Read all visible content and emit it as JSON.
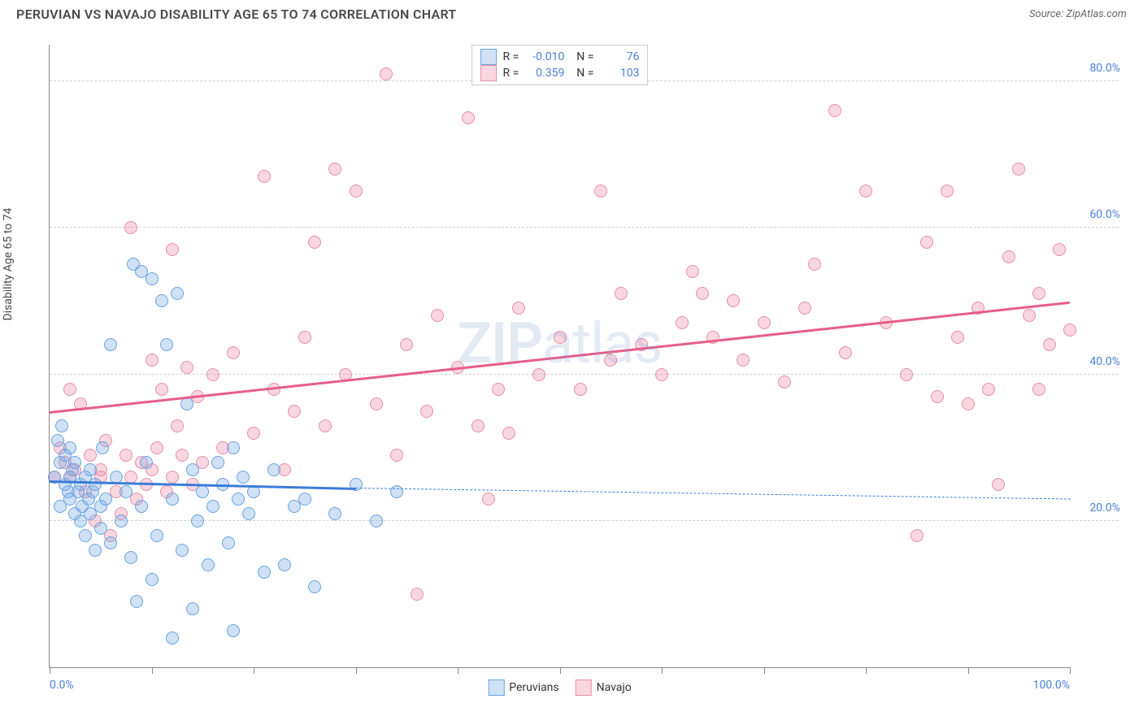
{
  "header": {
    "title": "PERUVIAN VS NAVAJO DISABILITY AGE 65 TO 74 CORRELATION CHART",
    "source": "Source: ZipAtlas.com"
  },
  "chart": {
    "type": "scatter",
    "ylabel": "Disability Age 65 to 74",
    "xlim": [
      0,
      100
    ],
    "ylim": [
      0,
      85
    ],
    "yticks": [
      20,
      40,
      60,
      80
    ],
    "ytick_labels": [
      "20.0%",
      "40.0%",
      "60.0%",
      "80.0%"
    ],
    "xticks": [
      0,
      10,
      20,
      30,
      40,
      50,
      60,
      70,
      80,
      90,
      100
    ],
    "xtick_labels_shown": {
      "0": "0.0%",
      "100": "100.0%"
    },
    "background_color": "#ffffff",
    "grid_color": "#d0d0d0",
    "axis_color": "#888888",
    "point_radius": 8,
    "watermark_zip": "ZIP",
    "watermark_atlas": "atlas",
    "series": {
      "peruvians": {
        "label": "Peruvians",
        "fill_color": "rgba(120, 170, 230, 0.35)",
        "stroke_color": "#6aa3e0",
        "line_color": "#3b7dd8",
        "R": "-0.010",
        "N": "76",
        "regression": {
          "x1": 0,
          "y1": 25.5,
          "x2": 30,
          "y2": 24.5,
          "dash_to_x": 100,
          "dash_to_y": 23.0
        },
        "points": [
          [
            0.5,
            26
          ],
          [
            0.8,
            31
          ],
          [
            1,
            28
          ],
          [
            1,
            22
          ],
          [
            1.2,
            33
          ],
          [
            1.5,
            25
          ],
          [
            1.5,
            29
          ],
          [
            1.8,
            24
          ],
          [
            2,
            26
          ],
          [
            2,
            30
          ],
          [
            2,
            23
          ],
          [
            2.2,
            27
          ],
          [
            2.5,
            21
          ],
          [
            2.5,
            28
          ],
          [
            2.8,
            24
          ],
          [
            3,
            25
          ],
          [
            3,
            20
          ],
          [
            3.2,
            22
          ],
          [
            3.5,
            18
          ],
          [
            3.5,
            26
          ],
          [
            3.8,
            23
          ],
          [
            4,
            21
          ],
          [
            4,
            27
          ],
          [
            4.2,
            24
          ],
          [
            4.5,
            16
          ],
          [
            4.5,
            25
          ],
          [
            5,
            22
          ],
          [
            5,
            19
          ],
          [
            5.2,
            30
          ],
          [
            5.5,
            23
          ],
          [
            6,
            17
          ],
          [
            6,
            44
          ],
          [
            6.5,
            26
          ],
          [
            7,
            20
          ],
          [
            7.5,
            24
          ],
          [
            8,
            15
          ],
          [
            8.2,
            55
          ],
          [
            8.5,
            9
          ],
          [
            9,
            22
          ],
          [
            9,
            54
          ],
          [
            9.5,
            28
          ],
          [
            10,
            53
          ],
          [
            10,
            12
          ],
          [
            10.5,
            18
          ],
          [
            11,
            50
          ],
          [
            11.5,
            44
          ],
          [
            12,
            4
          ],
          [
            12,
            23
          ],
          [
            12.5,
            51
          ],
          [
            13,
            16
          ],
          [
            13.5,
            36
          ],
          [
            14,
            8
          ],
          [
            14,
            27
          ],
          [
            14.5,
            20
          ],
          [
            15,
            24
          ],
          [
            15.5,
            14
          ],
          [
            16,
            22
          ],
          [
            16.5,
            28
          ],
          [
            17,
            25
          ],
          [
            17.5,
            17
          ],
          [
            18,
            30
          ],
          [
            18,
            5
          ],
          [
            18.5,
            23
          ],
          [
            19,
            26
          ],
          [
            19.5,
            21
          ],
          [
            20,
            24
          ],
          [
            21,
            13
          ],
          [
            22,
            27
          ],
          [
            23,
            14
          ],
          [
            24,
            22
          ],
          [
            25,
            23
          ],
          [
            26,
            11
          ],
          [
            28,
            21
          ],
          [
            30,
            25
          ],
          [
            32,
            20
          ],
          [
            34,
            24
          ]
        ]
      },
      "navajo": {
        "label": "Navajo",
        "fill_color": "rgba(240, 140, 165, 0.35)",
        "stroke_color": "#e88fa8",
        "line_color": "#e85d8a",
        "R": "0.359",
        "N": "103",
        "regression": {
          "x1": 0,
          "y1": 35,
          "x2": 100,
          "y2": 50
        },
        "points": [
          [
            0.5,
            26
          ],
          [
            1,
            30
          ],
          [
            1.5,
            28
          ],
          [
            2,
            26
          ],
          [
            2,
            38
          ],
          [
            2.5,
            27
          ],
          [
            3,
            36
          ],
          [
            3.5,
            24
          ],
          [
            4,
            29
          ],
          [
            4.5,
            20
          ],
          [
            5,
            26
          ],
          [
            5,
            27
          ],
          [
            5.5,
            31
          ],
          [
            6,
            18
          ],
          [
            6.5,
            24
          ],
          [
            7,
            21
          ],
          [
            7.5,
            29
          ],
          [
            8,
            26
          ],
          [
            8,
            60
          ],
          [
            8.5,
            23
          ],
          [
            9,
            28
          ],
          [
            9.5,
            25
          ],
          [
            10,
            42
          ],
          [
            10,
            27
          ],
          [
            10.5,
            30
          ],
          [
            11,
            38
          ],
          [
            11.5,
            24
          ],
          [
            12,
            26
          ],
          [
            12,
            57
          ],
          [
            12.5,
            33
          ],
          [
            13,
            29
          ],
          [
            13.5,
            41
          ],
          [
            14,
            25
          ],
          [
            14.5,
            37
          ],
          [
            15,
            28
          ],
          [
            16,
            40
          ],
          [
            17,
            30
          ],
          [
            18,
            43
          ],
          [
            20,
            32
          ],
          [
            21,
            67
          ],
          [
            22,
            38
          ],
          [
            23,
            27
          ],
          [
            24,
            35
          ],
          [
            25,
            45
          ],
          [
            26,
            58
          ],
          [
            27,
            33
          ],
          [
            28,
            68
          ],
          [
            29,
            40
          ],
          [
            30,
            65
          ],
          [
            32,
            36
          ],
          [
            33,
            81
          ],
          [
            34,
            29
          ],
          [
            35,
            44
          ],
          [
            36,
            10
          ],
          [
            37,
            35
          ],
          [
            38,
            48
          ],
          [
            40,
            41
          ],
          [
            41,
            75
          ],
          [
            42,
            33
          ],
          [
            43,
            23
          ],
          [
            44,
            38
          ],
          [
            45,
            32
          ],
          [
            46,
            49
          ],
          [
            48,
            40
          ],
          [
            50,
            45
          ],
          [
            52,
            38
          ],
          [
            54,
            65
          ],
          [
            55,
            42
          ],
          [
            56,
            51
          ],
          [
            58,
            44
          ],
          [
            60,
            40
          ],
          [
            62,
            47
          ],
          [
            63,
            54
          ],
          [
            64,
            51
          ],
          [
            65,
            45
          ],
          [
            67,
            50
          ],
          [
            68,
            42
          ],
          [
            70,
            47
          ],
          [
            72,
            39
          ],
          [
            74,
            49
          ],
          [
            75,
            55
          ],
          [
            77,
            76
          ],
          [
            78,
            43
          ],
          [
            80,
            65
          ],
          [
            82,
            47
          ],
          [
            84,
            40
          ],
          [
            85,
            18
          ],
          [
            86,
            58
          ],
          [
            87,
            37
          ],
          [
            88,
            65
          ],
          [
            89,
            45
          ],
          [
            90,
            36
          ],
          [
            91,
            49
          ],
          [
            92,
            38
          ],
          [
            93,
            25
          ],
          [
            94,
            56
          ],
          [
            95,
            68
          ],
          [
            96,
            48
          ],
          [
            97,
            38
          ],
          [
            97,
            51
          ],
          [
            98,
            44
          ],
          [
            99,
            57
          ],
          [
            100,
            46
          ]
        ]
      }
    },
    "bottom_legend": [
      {
        "label": "Peruvians",
        "fill": "rgba(120, 170, 230, 0.35)",
        "stroke": "#6aa3e0"
      },
      {
        "label": "Navajo",
        "fill": "rgba(240, 140, 165, 0.35)",
        "stroke": "#e88fa8"
      }
    ]
  }
}
